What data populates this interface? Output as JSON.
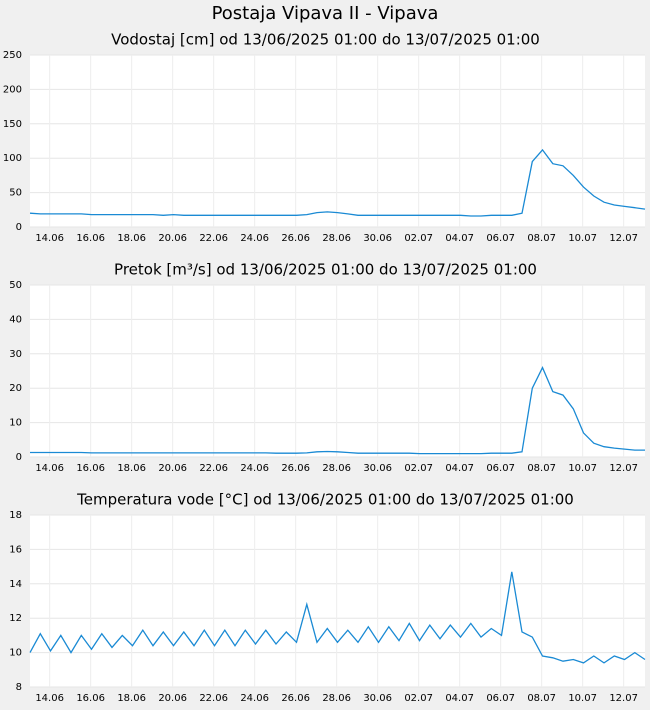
{
  "title": "Postaja Vipava II - Vipava",
  "chart_data": [
    {
      "type": "line",
      "title": "Vodostaj [cm] od 13/06/2025 01:00 do 13/07/2025 01:00",
      "color": "#1a8ad4",
      "grid": true,
      "x": [
        0,
        0.5,
        1,
        1.5,
        2,
        2.5,
        3,
        3.5,
        4,
        4.5,
        5,
        5.5,
        6,
        6.5,
        7,
        7.5,
        8,
        8.5,
        9,
        9.5,
        10,
        10.5,
        11,
        11.5,
        12,
        12.5,
        13,
        13.5,
        14,
        14.5,
        15,
        15.5,
        16,
        16.5,
        17,
        17.5,
        18,
        18.5,
        19,
        19.5,
        20,
        20.5,
        21,
        21.5,
        22,
        22.5,
        23,
        23.5,
        24,
        24.5,
        25,
        25.5,
        26,
        26.5,
        27,
        27.5,
        28,
        28.5,
        29,
        29.5,
        30
      ],
      "values": [
        20,
        19,
        19,
        19,
        19,
        19,
        18,
        18,
        18,
        18,
        18,
        18,
        18,
        17,
        18,
        17,
        17,
        17,
        17,
        17,
        17,
        17,
        17,
        17,
        17,
        17,
        17,
        18,
        21,
        22,
        21,
        19,
        17,
        17,
        17,
        17,
        17,
        17,
        17,
        17,
        17,
        17,
        17,
        16,
        16,
        17,
        17,
        17,
        20,
        95,
        112,
        92,
        89,
        75,
        58,
        45,
        36,
        32,
        30,
        28,
        26
      ],
      "xlim": [
        0,
        30
      ],
      "xticks": [
        {
          "value": 0.958,
          "label": "14.06"
        },
        {
          "value": 2.958,
          "label": "16.06"
        },
        {
          "value": 4.958,
          "label": "18.06"
        },
        {
          "value": 6.958,
          "label": "20.06"
        },
        {
          "value": 8.958,
          "label": "22.06"
        },
        {
          "value": 10.958,
          "label": "24.06"
        },
        {
          "value": 12.958,
          "label": "26.06"
        },
        {
          "value": 14.958,
          "label": "28.06"
        },
        {
          "value": 16.958,
          "label": "30.06"
        },
        {
          "value": 18.958,
          "label": "02.07"
        },
        {
          "value": 20.958,
          "label": "04.07"
        },
        {
          "value": 22.958,
          "label": "06.07"
        },
        {
          "value": 24.958,
          "label": "08.07"
        },
        {
          "value": 26.958,
          "label": "10.07"
        },
        {
          "value": 28.958,
          "label": "12.07"
        }
      ],
      "ylim": [
        0,
        250
      ],
      "yticks": [
        0,
        50,
        100,
        150,
        200,
        250
      ]
    },
    {
      "type": "line",
      "title": "Pretok [m³/s] od 13/06/2025 01:00 do 13/07/2025 01:00",
      "color": "#1a8ad4",
      "grid": true,
      "x": [
        0,
        0.5,
        1,
        1.5,
        2,
        2.5,
        3,
        3.5,
        4,
        4.5,
        5,
        5.5,
        6,
        6.5,
        7,
        7.5,
        8,
        8.5,
        9,
        9.5,
        10,
        10.5,
        11,
        11.5,
        12,
        12.5,
        13,
        13.5,
        14,
        14.5,
        15,
        15.5,
        16,
        16.5,
        17,
        17.5,
        18,
        18.5,
        19,
        19.5,
        20,
        20.5,
        21,
        21.5,
        22,
        22.5,
        23,
        23.5,
        24,
        24.5,
        25,
        25.5,
        26,
        26.5,
        27,
        27.5,
        28,
        28.5,
        29,
        29.5,
        30
      ],
      "values": [
        1.3,
        1.3,
        1.3,
        1.3,
        1.3,
        1.3,
        1.2,
        1.2,
        1.2,
        1.2,
        1.2,
        1.2,
        1.2,
        1.2,
        1.2,
        1.2,
        1.2,
        1.2,
        1.2,
        1.2,
        1.2,
        1.2,
        1.2,
        1.2,
        1.1,
        1.1,
        1.1,
        1.2,
        1.5,
        1.6,
        1.5,
        1.3,
        1.1,
        1.1,
        1.1,
        1.1,
        1.1,
        1.1,
        1.0,
        1.0,
        1.0,
        1.0,
        1.0,
        1.0,
        1.0,
        1.1,
        1.1,
        1.1,
        1.5,
        20,
        26,
        19,
        18,
        14,
        7,
        4,
        3,
        2.6,
        2.3,
        2,
        2
      ],
      "xlim": [
        0,
        30
      ],
      "xticks": [
        {
          "value": 0.958,
          "label": "14.06"
        },
        {
          "value": 2.958,
          "label": "16.06"
        },
        {
          "value": 4.958,
          "label": "18.06"
        },
        {
          "value": 6.958,
          "label": "20.06"
        },
        {
          "value": 8.958,
          "label": "22.06"
        },
        {
          "value": 10.958,
          "label": "24.06"
        },
        {
          "value": 12.958,
          "label": "26.06"
        },
        {
          "value": 14.958,
          "label": "28.06"
        },
        {
          "value": 16.958,
          "label": "30.06"
        },
        {
          "value": 18.958,
          "label": "02.07"
        },
        {
          "value": 20.958,
          "label": "04.07"
        },
        {
          "value": 22.958,
          "label": "06.07"
        },
        {
          "value": 24.958,
          "label": "08.07"
        },
        {
          "value": 26.958,
          "label": "10.07"
        },
        {
          "value": 28.958,
          "label": "12.07"
        }
      ],
      "ylim": [
        0,
        50
      ],
      "yticks": [
        0,
        10,
        20,
        30,
        40,
        50
      ]
    },
    {
      "type": "line",
      "title": "Temperatura vode [°C] od 13/06/2025 01:00 do 13/07/2025 01:00",
      "color": "#1a8ad4",
      "grid": true,
      "x": [
        0,
        0.5,
        1,
        1.5,
        2,
        2.5,
        3,
        3.5,
        4,
        4.5,
        5,
        5.5,
        6,
        6.5,
        7,
        7.5,
        8,
        8.5,
        9,
        9.5,
        10,
        10.5,
        11,
        11.5,
        12,
        12.5,
        13,
        13.5,
        14,
        14.5,
        15,
        15.5,
        16,
        16.5,
        17,
        17.5,
        18,
        18.5,
        19,
        19.5,
        20,
        20.5,
        21,
        21.5,
        22,
        22.5,
        23,
        23.5,
        24,
        24.5,
        25,
        25.5,
        26,
        26.5,
        27,
        27.5,
        28,
        28.5,
        29,
        29.5,
        30
      ],
      "values": [
        10.0,
        11.1,
        10.1,
        11.0,
        10.0,
        11.0,
        10.2,
        11.1,
        10.3,
        11.0,
        10.4,
        11.3,
        10.4,
        11.2,
        10.4,
        11.2,
        10.4,
        11.3,
        10.4,
        11.3,
        10.4,
        11.3,
        10.5,
        11.3,
        10.5,
        11.2,
        10.6,
        12.8,
        10.6,
        11.4,
        10.6,
        11.3,
        10.6,
        11.5,
        10.6,
        11.5,
        10.7,
        11.7,
        10.7,
        11.6,
        10.8,
        11.6,
        10.9,
        11.7,
        10.9,
        11.4,
        11.0,
        14.7,
        11.2,
        10.9,
        9.8,
        9.7,
        9.5,
        9.6,
        9.4,
        9.8,
        9.4,
        9.8,
        9.6,
        10.0,
        9.6
      ],
      "xlim": [
        0,
        30
      ],
      "xticks": [
        {
          "value": 0.958,
          "label": "14.06"
        },
        {
          "value": 2.958,
          "label": "16.06"
        },
        {
          "value": 4.958,
          "label": "18.06"
        },
        {
          "value": 6.958,
          "label": "20.06"
        },
        {
          "value": 8.958,
          "label": "22.06"
        },
        {
          "value": 10.958,
          "label": "24.06"
        },
        {
          "value": 12.958,
          "label": "26.06"
        },
        {
          "value": 14.958,
          "label": "28.06"
        },
        {
          "value": 16.958,
          "label": "30.06"
        },
        {
          "value": 18.958,
          "label": "02.07"
        },
        {
          "value": 20.958,
          "label": "04.07"
        },
        {
          "value": 22.958,
          "label": "06.07"
        },
        {
          "value": 24.958,
          "label": "08.07"
        },
        {
          "value": 26.958,
          "label": "10.07"
        },
        {
          "value": 28.958,
          "label": "12.07"
        }
      ],
      "ylim": [
        8,
        18
      ],
      "yticks": [
        8,
        10,
        12,
        14,
        16,
        18
      ]
    }
  ]
}
